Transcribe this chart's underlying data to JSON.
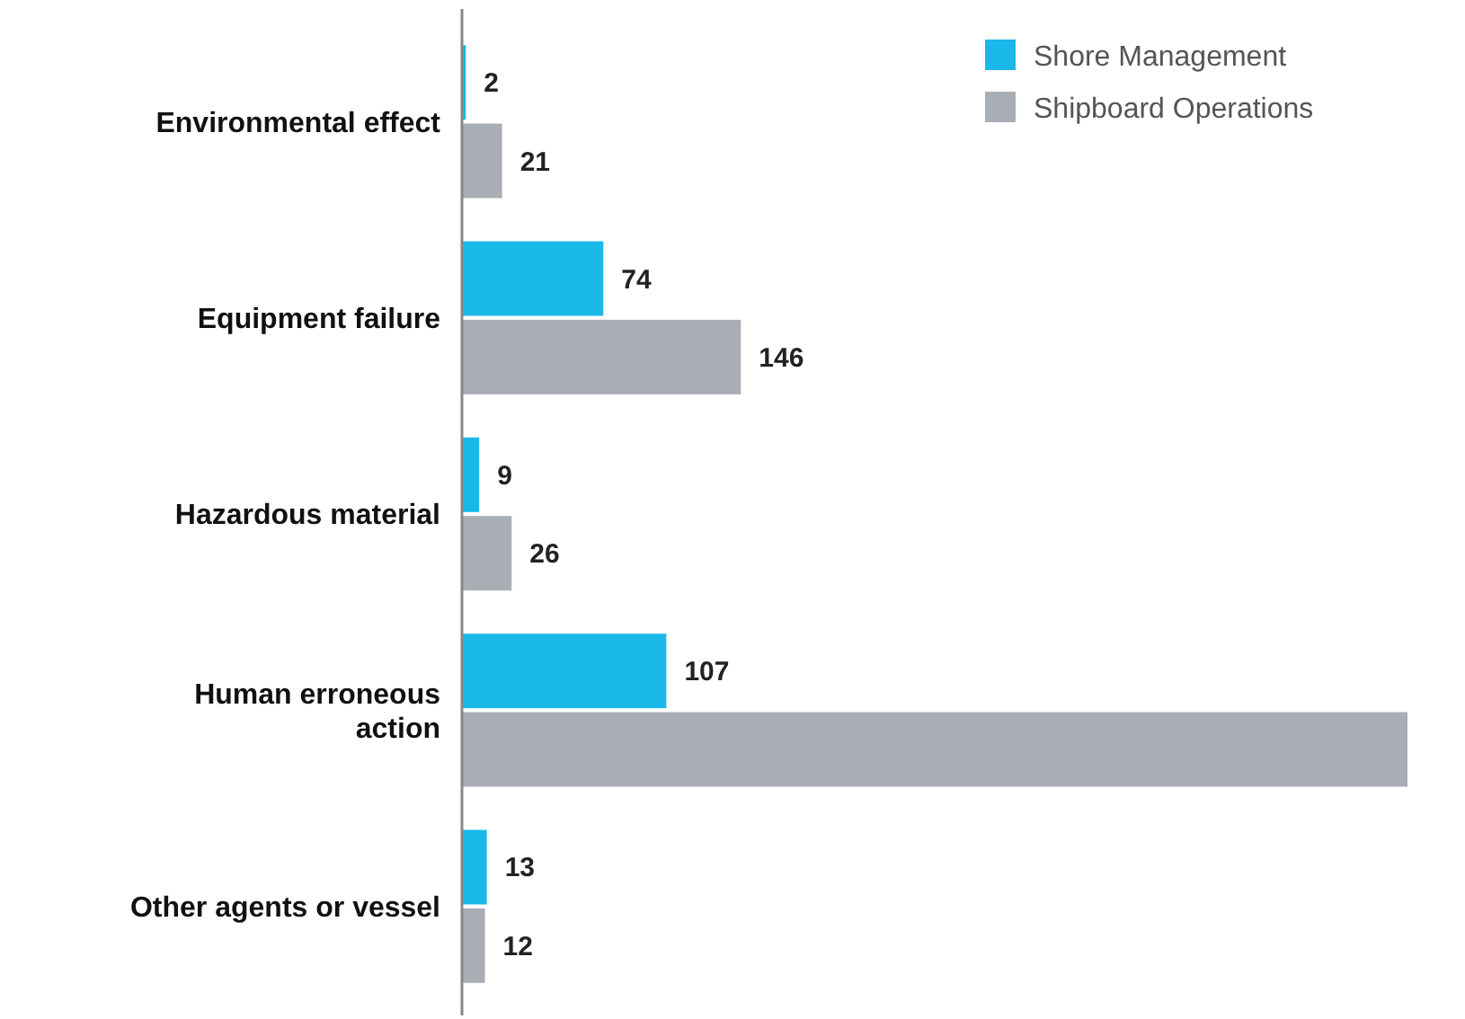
{
  "chart_data": {
    "type": "bar",
    "orientation": "horizontal",
    "categories": [
      "Environmental effect",
      "Equipment failure",
      "Hazardous material",
      "Human erroneous\naction",
      "Other agents or vessel"
    ],
    "series": [
      {
        "name": "Shore Management",
        "color": "#1ab8e8",
        "values": [
          2,
          74,
          9,
          107,
          13
        ],
        "value_labels": [
          "2",
          "74",
          "9",
          "107",
          "13"
        ]
      },
      {
        "name": "Shipboard Operations",
        "color": "#a9aeb4",
        "values": [
          21,
          146,
          26,
          495,
          12
        ],
        "value_labels": [
          "21",
          "146",
          "26",
          null,
          "12"
        ]
      }
    ],
    "legend": "top right"
  }
}
